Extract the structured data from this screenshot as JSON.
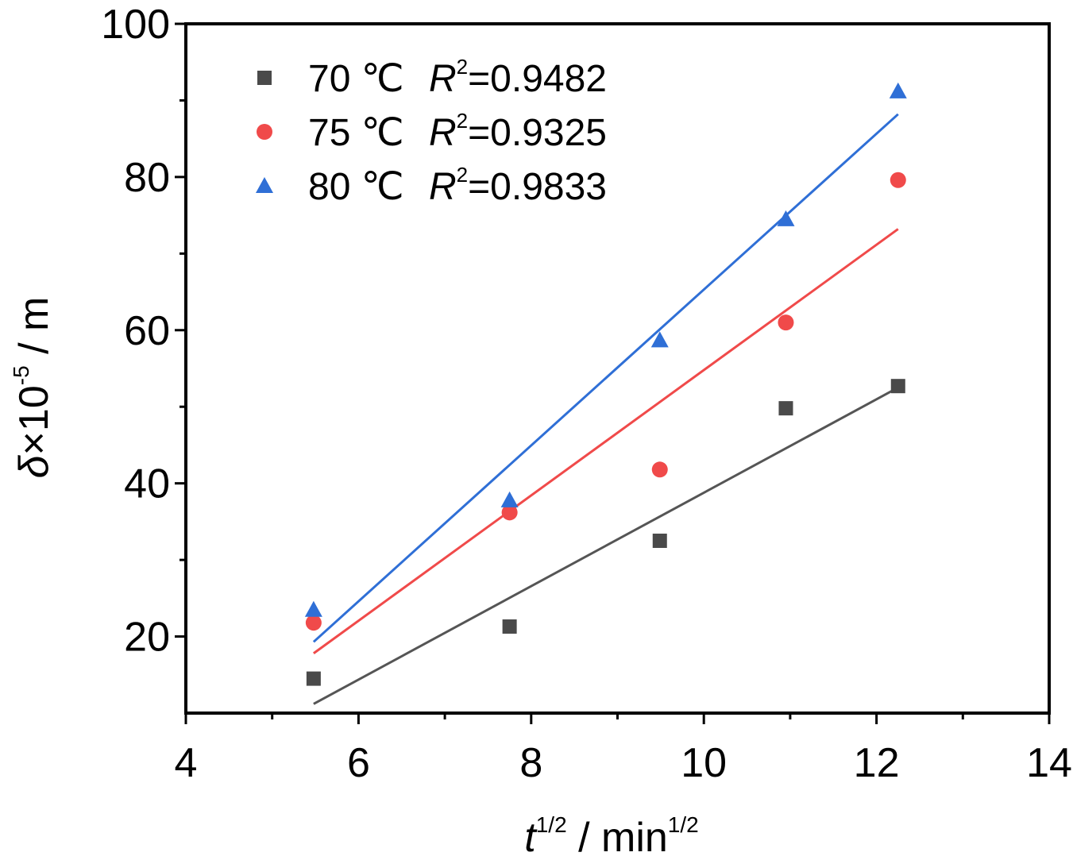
{
  "chart_data": {
    "type": "scatter",
    "xlabel": {
      "base": "t",
      "sup": "1/2",
      "unit": " / min",
      "unit_sup": "1/2"
    },
    "ylabel": {
      "base": "δ",
      "mid": "×10",
      "sup": "-5",
      "unit": " / m"
    },
    "xlim": [
      4,
      14
    ],
    "ylim": [
      10,
      100
    ],
    "xticks": [
      4,
      6,
      8,
      10,
      12,
      14
    ],
    "yticks": [
      20,
      40,
      60,
      80,
      100
    ],
    "grid": false,
    "legend_position": "top-left",
    "series": [
      {
        "temp": "70 ℃",
        "r2_label": "R",
        "r2_sup": "2",
        "r2_value": "=0.9482",
        "marker": "square",
        "color": "#4a4a4a",
        "line_color": "#555555",
        "x": [
          5.48,
          7.75,
          9.49,
          10.95,
          12.25
        ],
        "y": [
          14.5,
          21.3,
          32.5,
          49.8,
          52.7
        ],
        "fit": {
          "x": [
            5.48,
            12.25
          ],
          "y": [
            11.2,
            52.5
          ]
        }
      },
      {
        "temp": "75 ℃",
        "r2_label": "R",
        "r2_sup": "2",
        "r2_value": "=0.9325",
        "marker": "circle",
        "color": "#f04a4a",
        "line_color": "#f04a4a",
        "x": [
          5.48,
          7.75,
          9.49,
          10.95,
          12.25
        ],
        "y": [
          21.8,
          36.2,
          41.8,
          61.0,
          79.6
        ],
        "fit": {
          "x": [
            5.48,
            12.25
          ],
          "y": [
            17.8,
            73.2
          ]
        }
      },
      {
        "temp": "80 ℃",
        "r2_label": "R",
        "r2_sup": "2",
        "r2_value": "=0.9833",
        "marker": "triangle",
        "color": "#2f6fd6",
        "line_color": "#2f6fd6",
        "x": [
          5.48,
          7.75,
          9.49,
          10.95,
          12.25
        ],
        "y": [
          23.5,
          37.8,
          58.7,
          74.5,
          91.2
        ],
        "fit": {
          "x": [
            5.48,
            12.25
          ],
          "y": [
            19.3,
            88.2
          ]
        }
      }
    ]
  }
}
